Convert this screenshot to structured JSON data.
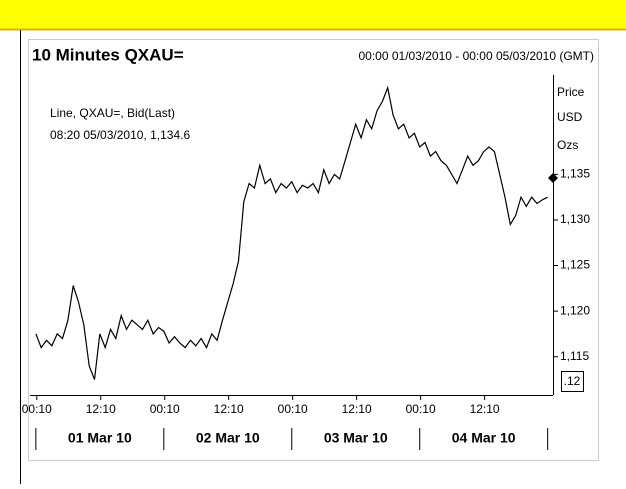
{
  "chart_data": {
    "type": "line",
    "title": "10 Minutes QXAU=",
    "date_range": "00:00 01/03/2010 - 00:00 05/03/2010 (GMT)",
    "legend_line1": "Line, QXAU=, Bid(Last)",
    "legend_line2": "08:20 05/03/2010, 1,134.6",
    "y_unit": [
      "Price",
      "USD",
      "Ozs"
    ],
    "scale_box": ".12",
    "marker_value": 1134.6,
    "color": "#000000",
    "x": [
      0,
      1,
      2,
      3,
      4,
      5,
      6,
      7,
      8,
      9,
      10,
      11,
      12,
      13,
      14,
      15,
      16,
      17,
      18,
      19,
      20,
      21,
      22,
      23,
      24,
      25,
      26,
      27,
      28,
      29,
      30,
      31,
      32,
      33,
      34,
      35,
      36,
      37,
      38,
      39,
      40,
      41,
      42,
      43,
      44,
      45,
      46,
      47,
      48,
      49,
      50,
      51,
      52,
      53,
      54,
      55,
      56,
      57,
      58,
      59,
      60,
      61,
      62,
      63,
      64,
      65,
      66,
      67,
      68,
      69,
      70,
      71,
      72,
      73,
      74,
      75,
      76,
      77,
      78,
      79,
      80,
      81,
      82,
      83,
      84,
      85,
      86,
      87,
      88,
      89,
      90,
      91,
      92,
      93,
      94,
      95,
      96
    ],
    "values": [
      1117.5,
      1116.0,
      1116.8,
      1116.2,
      1117.5,
      1117.0,
      1119.0,
      1122.8,
      1121.0,
      1118.5,
      1114.0,
      1112.5,
      1117.5,
      1116.0,
      1118.0,
      1117.0,
      1119.5,
      1118.0,
      1119.0,
      1118.5,
      1118.0,
      1119.0,
      1117.5,
      1118.2,
      1117.8,
      1116.5,
      1117.2,
      1116.5,
      1116.0,
      1116.8,
      1116.2,
      1117.0,
      1116.0,
      1117.5,
      1116.8,
      1119.0,
      1121.0,
      1123.0,
      1125.5,
      1132.0,
      1134.0,
      1133.5,
      1136.0,
      1134.0,
      1134.5,
      1133.0,
      1134.0,
      1133.5,
      1134.2,
      1133.0,
      1133.8,
      1133.5,
      1134.0,
      1133.0,
      1135.5,
      1134.0,
      1135.0,
      1134.5,
      1136.5,
      1138.5,
      1140.5,
      1139.0,
      1141.0,
      1140.0,
      1142.0,
      1143.0,
      1144.5,
      1141.5,
      1140.0,
      1140.5,
      1139.0,
      1139.5,
      1138.0,
      1138.5,
      1137.0,
      1137.5,
      1136.5,
      1136.0,
      1135.0,
      1134.0,
      1135.5,
      1137.0,
      1136.0,
      1136.5,
      1137.5,
      1138.0,
      1137.5,
      1135.0,
      1132.5,
      1129.5,
      1130.5,
      1132.5,
      1131.5,
      1132.5,
      1131.8,
      1132.2,
      1132.5
    ],
    "xlim": [
      -1.1,
      97
    ],
    "xticks": [
      {
        "value": 0.17,
        "label": "00:10"
      },
      {
        "value": 12.17,
        "label": "12:10"
      },
      {
        "value": 24.17,
        "label": "00:10"
      },
      {
        "value": 36.17,
        "label": "12:10"
      },
      {
        "value": 48.17,
        "label": "00:10"
      },
      {
        "value": 60.17,
        "label": "12:10"
      },
      {
        "value": 72.17,
        "label": "00:10"
      },
      {
        "value": 84.17,
        "label": "12:10"
      }
    ],
    "day_boundaries": [
      0,
      24,
      48,
      72,
      96
    ],
    "day_labels": [
      "01 Mar 10",
      "02 Mar 10",
      "03 Mar 10",
      "04 Mar 10"
    ],
    "ylim": [
      1110.8,
      1145.9
    ],
    "yticks": [
      {
        "value": 1115,
        "label": "1,115"
      },
      {
        "value": 1120,
        "label": "1,120"
      },
      {
        "value": 1125,
        "label": "1,125"
      },
      {
        "value": 1130,
        "label": "1,130"
      },
      {
        "value": 1135,
        "label": "1,135"
      }
    ]
  }
}
